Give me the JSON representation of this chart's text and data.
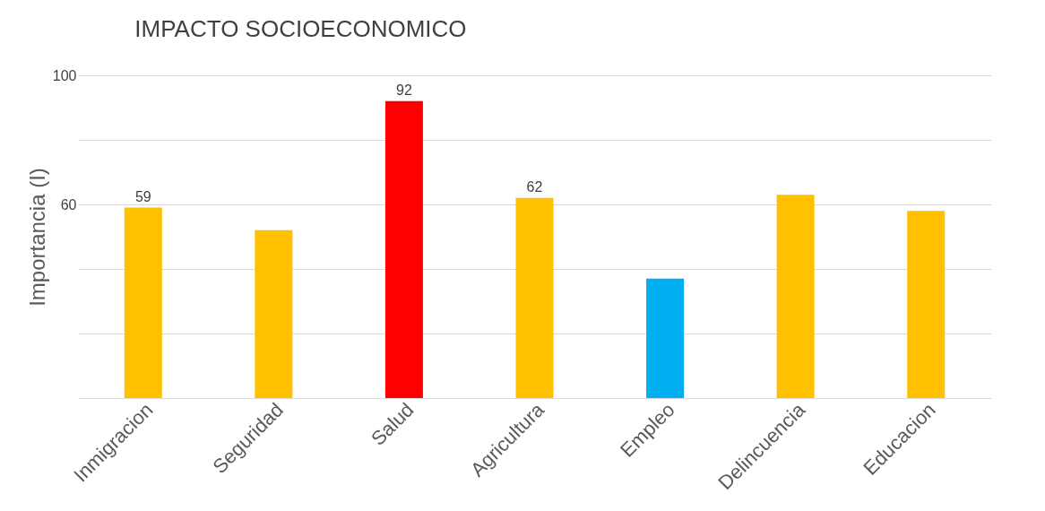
{
  "chart_data": {
    "type": "bar",
    "title": "IMPACTO SOCIOECONOMICO",
    "ylabel": "Importancia (I)",
    "categories": [
      "Inmigracion",
      "Seguridad",
      "Salud",
      "Agricultura",
      "Empleo",
      "Delincuencia",
      "Educacion"
    ],
    "values": [
      59,
      52,
      92,
      62,
      37,
      63,
      58
    ],
    "colors": [
      "#ffc000",
      "#ffc000",
      "#ff0000",
      "#ffc000",
      "#00b0f0",
      "#ffc000",
      "#ffc000"
    ],
    "value_labels": [
      "59",
      null,
      "92",
      "62",
      null,
      null,
      null
    ],
    "ylim": [
      0,
      100
    ],
    "yticks": [
      {
        "value": 0,
        "label": null
      },
      {
        "value": 20,
        "label": null
      },
      {
        "value": 40,
        "label": null
      },
      60,
      {
        "value": 80,
        "label": null
      },
      100
    ],
    "grid": "y"
  }
}
